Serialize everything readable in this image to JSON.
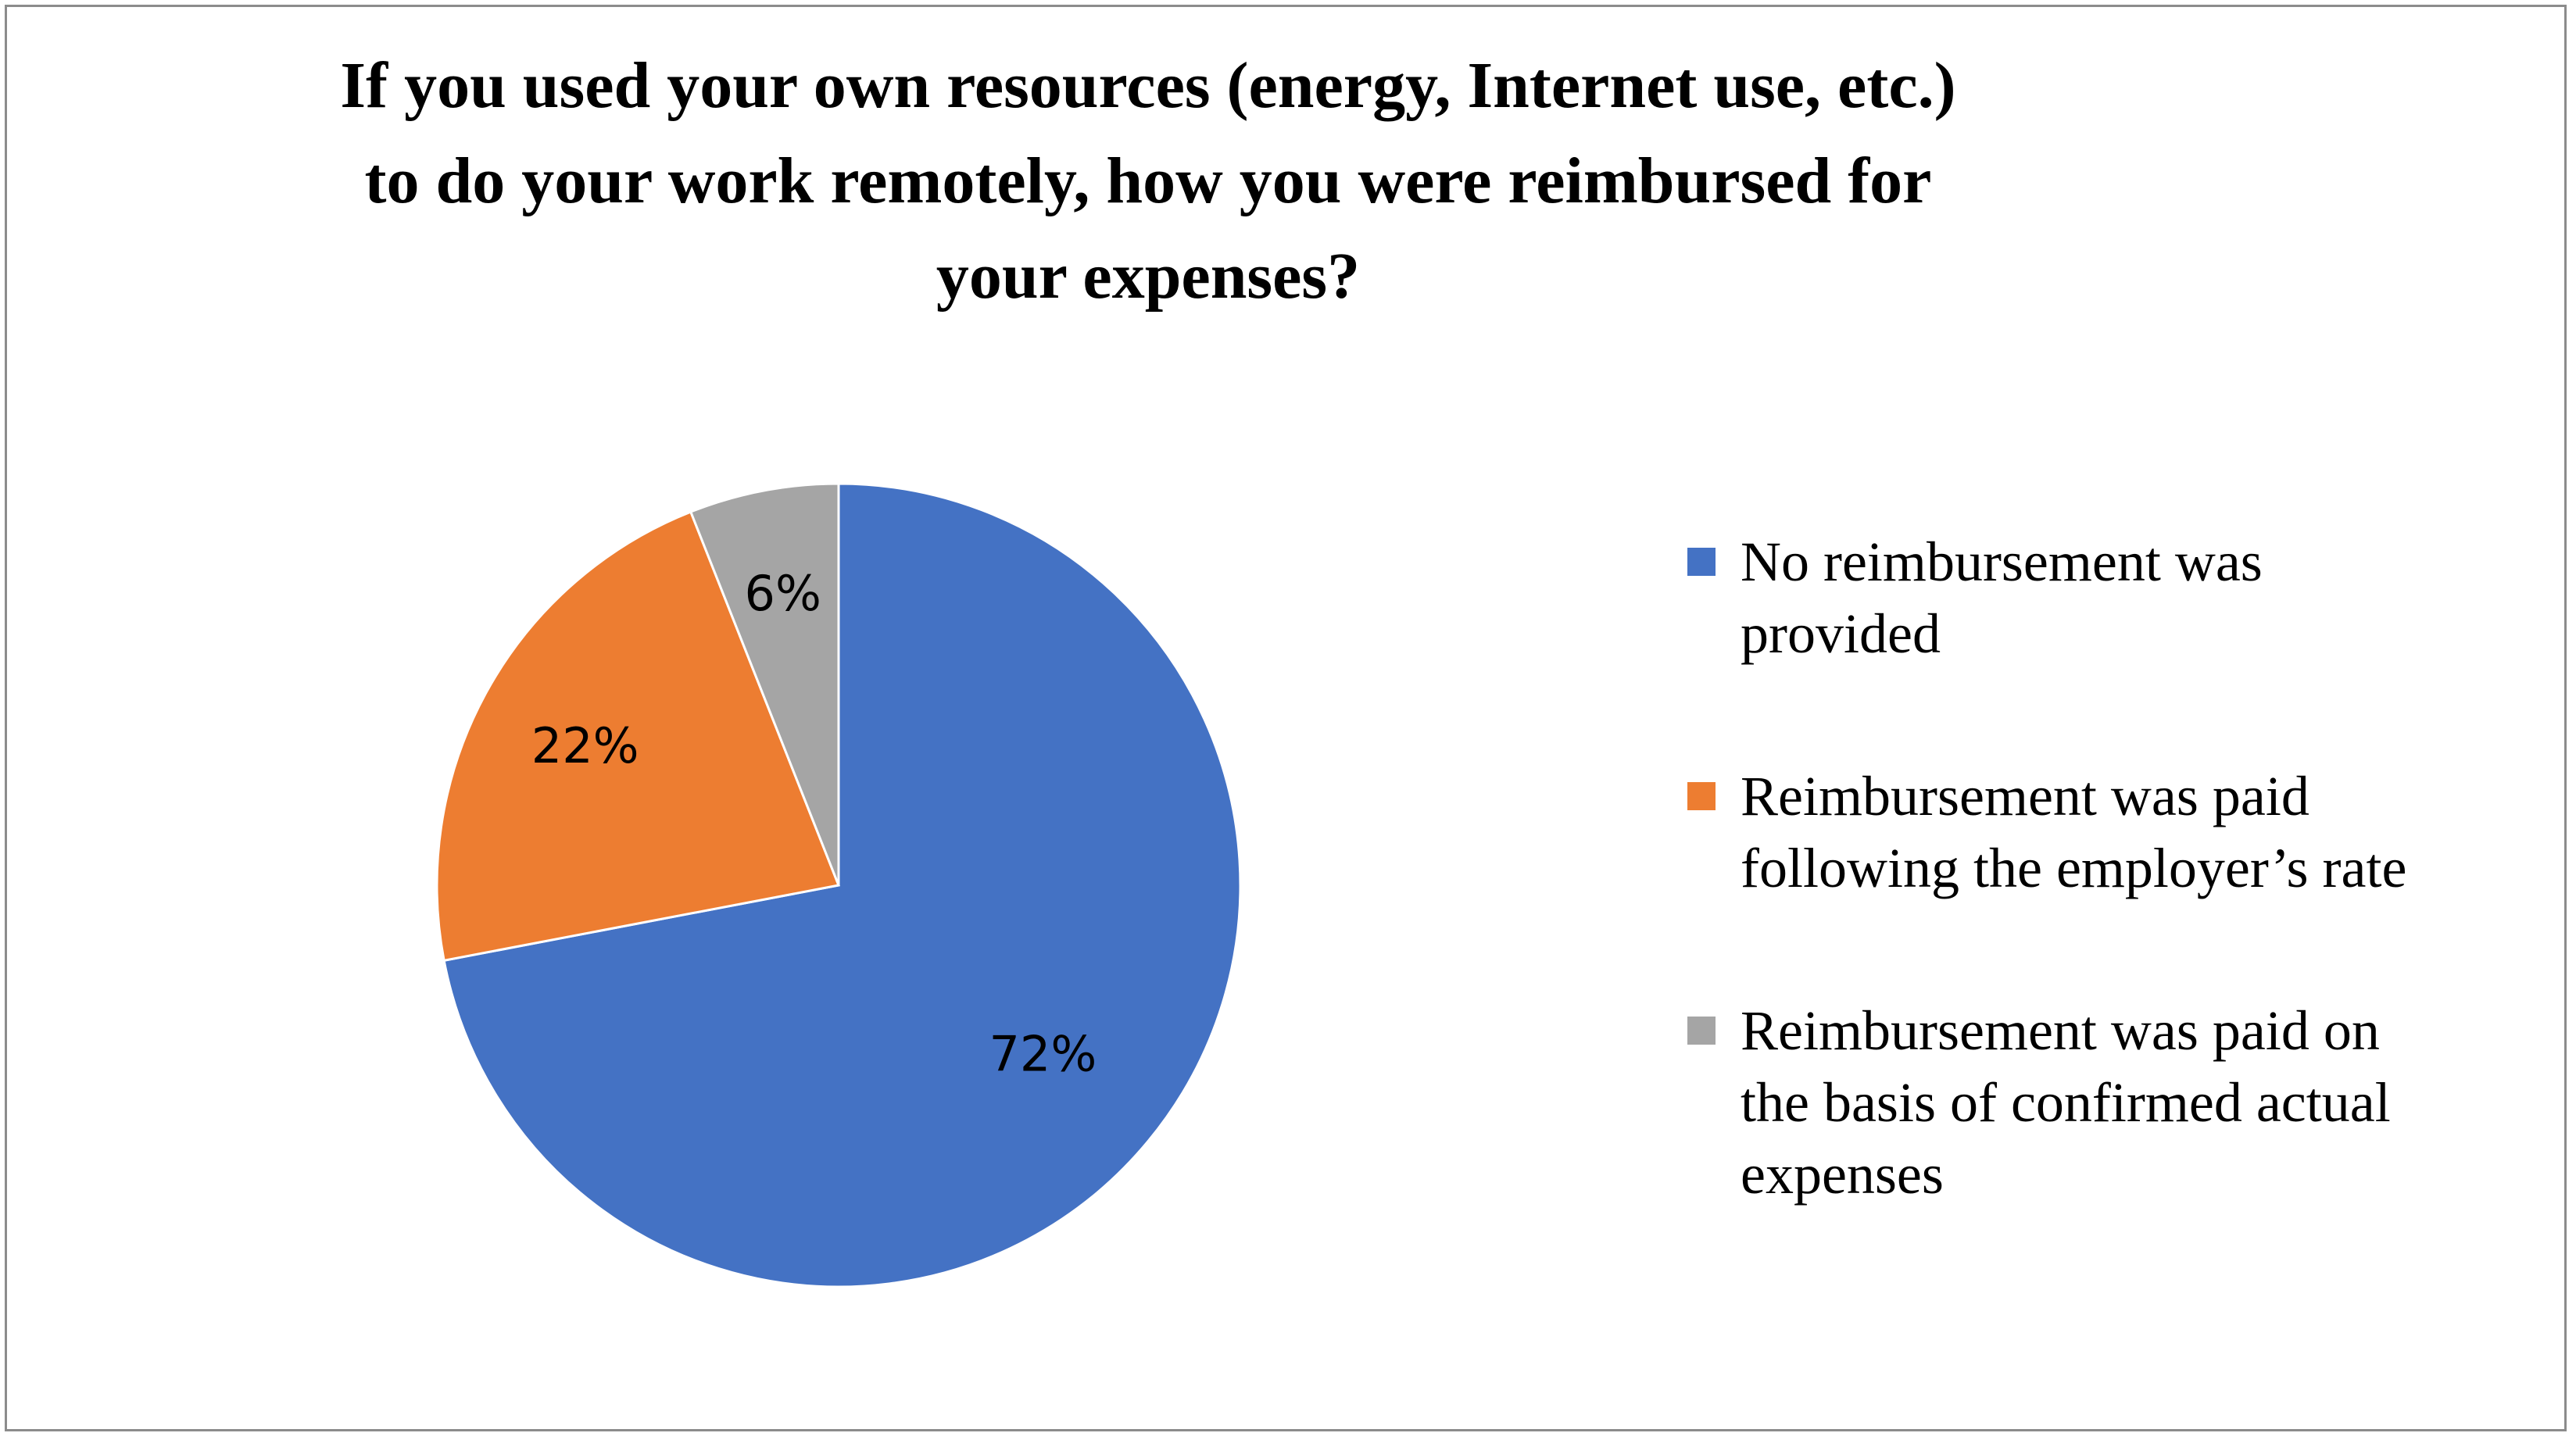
{
  "chart_data": {
    "type": "pie",
    "title": "If you used your own resources (energy, Internet use, etc.) to do your work remotely, how you were reimbursed for your expenses?",
    "title_lines": [
      "If you used your own resources (energy, Internet use, etc.)",
      "to do your work remotely, how you were reimbursed for",
      "your expenses?"
    ],
    "slices": [
      {
        "label": "No reimbursement was provided",
        "legend_lines": [
          "No reimbursement was",
          "provided"
        ],
        "value": 72,
        "display": "72%",
        "color": "#4472C4"
      },
      {
        "label": "Reimbursement was paid following the employer’s rate",
        "legend_lines": [
          "Reimbursement was paid",
          "following the employer’s rate"
        ],
        "value": 22,
        "display": "22%",
        "color": "#ED7D31"
      },
      {
        "label": "Reimbursement was paid on the basis of confirmed actual expenses",
        "legend_lines": [
          "Reimbursement was paid on",
          "the basis of confirmed actual",
          "expenses"
        ],
        "value": 6,
        "display": "6%",
        "color": "#A5A5A5"
      }
    ],
    "start_angle": "12 o'clock",
    "direction": "clockwise",
    "legend_position": "right"
  }
}
